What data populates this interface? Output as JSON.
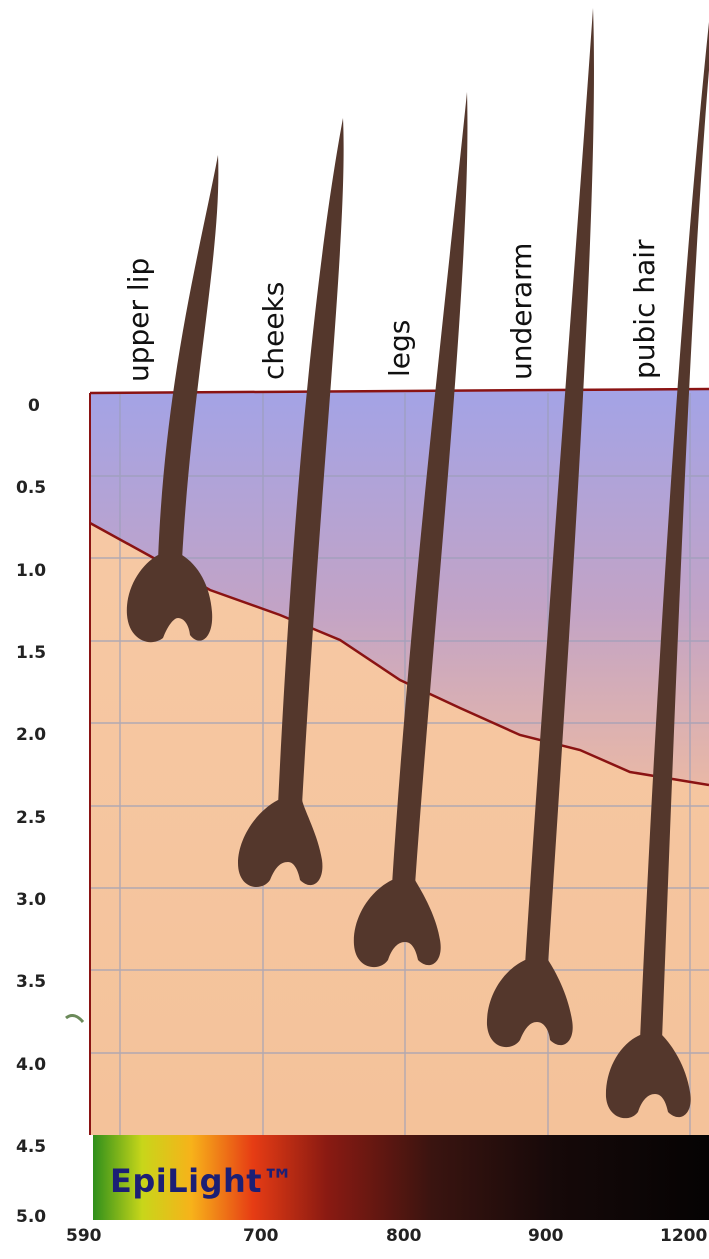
{
  "diagram": {
    "hair_labels": [
      "upper lip",
      "cheeks",
      "legs",
      "underarm",
      "pubic hair"
    ],
    "y_axis_ticks": [
      "0",
      "0.5",
      "1.0",
      "1.5",
      "2.0",
      "2.5",
      "3.0",
      "3.5",
      "4.0",
      "4.5",
      "5.0"
    ],
    "x_axis_ticks": [
      "590",
      "700",
      "800",
      "900",
      "1200"
    ],
    "brand": "EpiLight™",
    "colors": {
      "hair": "#54372c",
      "skin_upper": "#a8a7e0",
      "skin_lower": "#f6c9a3",
      "boundary_line": "#8a1313"
    }
  }
}
